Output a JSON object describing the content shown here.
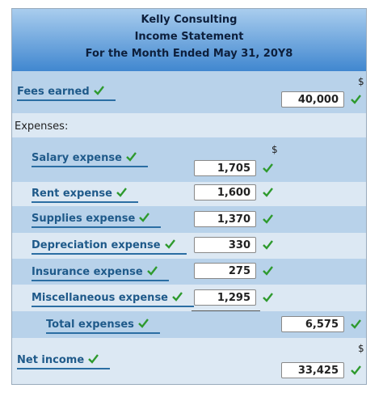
{
  "header": {
    "company": "Kelly Consulting",
    "title": "Income Statement",
    "period": "For the Month Ended May 31, 20Y8"
  },
  "rows": [
    {
      "label": "Fees earned",
      "currency": "$",
      "amount": "40,000"
    },
    {
      "label": "Expenses:"
    },
    {
      "label": "Salary expense",
      "currency": "$",
      "amount": "1,705"
    },
    {
      "label": "Rent expense",
      "amount": "1,600"
    },
    {
      "label": "Supplies expense",
      "amount": "1,370"
    },
    {
      "label": "Depreciation expense",
      "amount": "330"
    },
    {
      "label": "Insurance expense",
      "amount": "275"
    },
    {
      "label": "Miscellaneous expense",
      "amount": "1,295"
    },
    {
      "label": "Total expenses",
      "amount": "6,575"
    },
    {
      "label": "Net income",
      "currency": "$",
      "amount": "33,425"
    }
  ]
}
